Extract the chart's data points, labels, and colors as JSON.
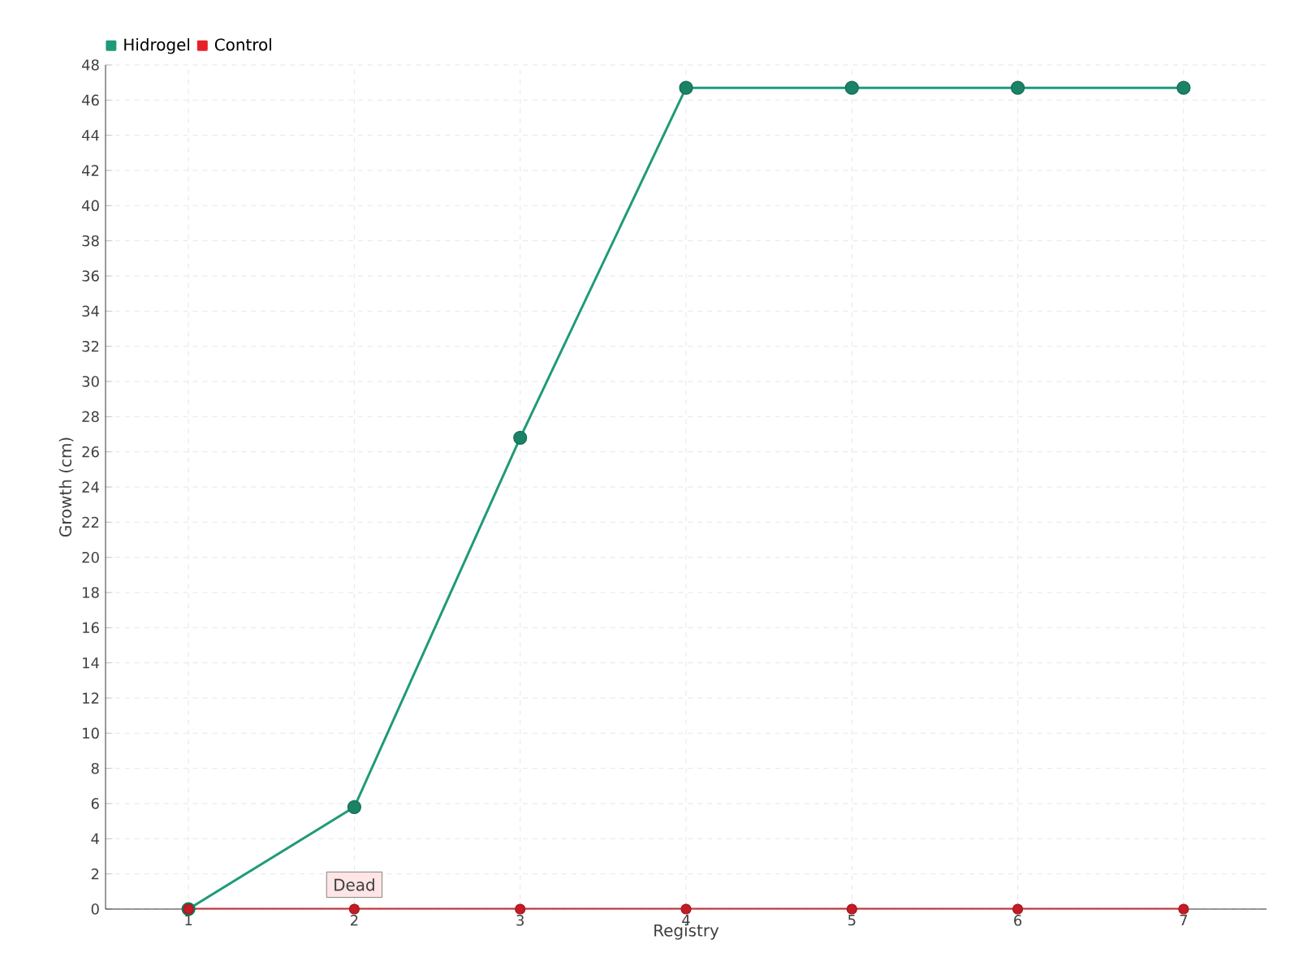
{
  "chart_data": {
    "type": "line",
    "xlabel": "Registry",
    "ylabel": "Growth (cm)",
    "categories": [
      "1",
      "2",
      "3",
      "4",
      "5",
      "6",
      "7"
    ],
    "series": [
      {
        "name": "Hidrogel",
        "color": "#1f9a78",
        "values": [
          0,
          5.8,
          26.8,
          46.7,
          46.7,
          46.7,
          46.7
        ]
      },
      {
        "name": "Control",
        "color": "#e8202a",
        "values": [
          0,
          0,
          0,
          0,
          0,
          0,
          0
        ]
      }
    ],
    "ylim": [
      0,
      48
    ],
    "yticks": [
      0,
      2,
      4,
      6,
      8,
      10,
      12,
      14,
      16,
      18,
      20,
      22,
      24,
      26,
      28,
      30,
      32,
      34,
      36,
      38,
      40,
      42,
      44,
      46,
      48
    ],
    "annotations": [
      {
        "text": "Dead",
        "x": "2",
        "y": 0
      }
    ],
    "grid": true,
    "legend": "top left",
    "marker": "circle"
  }
}
